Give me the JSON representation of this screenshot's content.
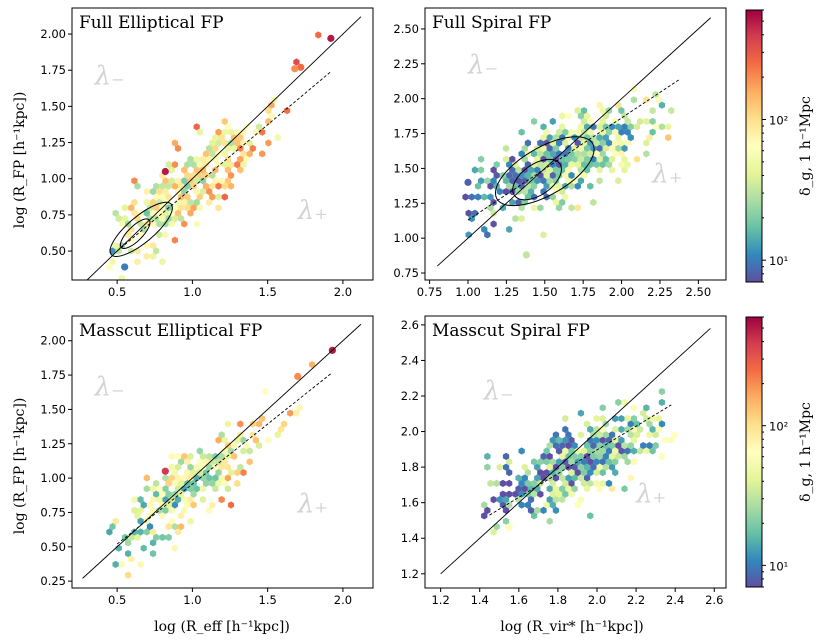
{
  "figure": {
    "xlabel_left": "log (R_eff [h⁻¹kpc])",
    "xlabel_right": "log (R_vir* [h⁻¹kpc])",
    "ylabel": "log (R_FP [h⁻¹kpc])",
    "lambda_minus": "λ₋",
    "lambda_plus": "λ₊"
  },
  "colorbar": {
    "label": "δ_g, 1 h⁻¹Mpc",
    "scale": "log",
    "range": [
      7,
      600
    ],
    "tick_labels": [
      "10¹",
      "10²"
    ],
    "tick_values": [
      10,
      100
    ],
    "colormap": "Spectral_r"
  },
  "chart_data": [
    {
      "type": "scatter",
      "title": "Full Elliptical FP",
      "xlim": [
        0.2,
        2.2
      ],
      "ylim": [
        0.3,
        2.18
      ],
      "xticks": [
        "0.5",
        "1.0",
        "1.5",
        "2.0"
      ],
      "xtick_values": [
        0.5,
        1.0,
        1.5,
        2.0
      ],
      "yticks": [
        "0.50",
        "0.75",
        "1.00",
        "1.25",
        "1.50",
        "1.75",
        "2.00"
      ],
      "ytick_values": [
        0.5,
        0.75,
        1.0,
        1.25,
        1.5,
        1.75,
        2.0
      ],
      "one_to_one": [
        [
          0.27,
          0.27
        ],
        [
          2.12,
          2.12
        ]
      ],
      "fit_line": [
        [
          0.5,
          0.5
        ],
        [
          1.92,
          1.74
        ]
      ],
      "cloud": {
        "center": [
          0.95,
          0.92
        ],
        "slope": 0.92,
        "spread_along": 0.36,
        "spread_perp": 0.1,
        "count": 330,
        "x_range": [
          0.45,
          1.9
        ],
        "density_base": 1.7
      },
      "contours": [
        {
          "center": [
            0.62,
            0.62
          ],
          "rx": 0.13,
          "ry": 0.05,
          "angle_deg": 45
        },
        {
          "center": [
            0.66,
            0.65
          ],
          "rx": 0.26,
          "ry": 0.09,
          "angle_deg": 40
        }
      ],
      "highlights": [
        {
          "x": 1.92,
          "y": 1.97,
          "log_density": 2.7
        },
        {
          "x": 1.72,
          "y": 1.77,
          "log_density": 2.4
        },
        {
          "x": 1.68,
          "y": 1.76,
          "log_density": 2.3
        },
        {
          "x": 0.82,
          "y": 1.05,
          "log_density": 2.7
        },
        {
          "x": 0.55,
          "y": 0.39,
          "log_density": 1.0
        }
      ],
      "lambda_minus_pos": [
        0.35,
        1.65
      ],
      "lambda_plus_pos": [
        1.7,
        0.72
      ]
    },
    {
      "type": "scatter",
      "title": "Full Spiral FP",
      "xlim": [
        0.72,
        2.68
      ],
      "ylim": [
        0.7,
        2.65
      ],
      "xticks": [
        "0.75",
        "1.00",
        "1.25",
        "1.50",
        "1.75",
        "2.00",
        "2.25",
        "2.50"
      ],
      "xtick_values": [
        0.75,
        1.0,
        1.25,
        1.5,
        1.75,
        2.0,
        2.25,
        2.5
      ],
      "yticks": [
        "0.75",
        "1.00",
        "1.25",
        "1.50",
        "1.75",
        "2.00",
        "2.25",
        "2.50"
      ],
      "ytick_values": [
        0.75,
        1.0,
        1.25,
        1.5,
        1.75,
        2.0,
        2.25,
        2.5
      ],
      "one_to_one": [
        [
          0.8,
          0.8
        ],
        [
          2.58,
          2.58
        ]
      ],
      "fit_line": [
        [
          1.0,
          1.13
        ],
        [
          2.38,
          2.14
        ]
      ],
      "cloud": {
        "center": [
          1.62,
          1.55
        ],
        "slope": 0.55,
        "spread_along": 0.32,
        "spread_perp": 0.12,
        "count": 480,
        "x_range": [
          1.0,
          2.38
        ],
        "density_base": 1.2
      },
      "contours": [
        {
          "center": [
            1.45,
            1.42
          ],
          "rx": 0.18,
          "ry": 0.11,
          "angle_deg": 35
        },
        {
          "center": [
            1.5,
            1.48
          ],
          "rx": 0.36,
          "ry": 0.17,
          "angle_deg": 30
        }
      ],
      "highlights": [
        {
          "x": 1.0,
          "y": 1.4,
          "log_density": 0.9
        },
        {
          "x": 1.38,
          "y": 0.88,
          "log_density": 1.5
        }
      ],
      "lambda_minus_pos": [
        1.0,
        2.18
      ],
      "lambda_plus_pos": [
        2.2,
        1.4
      ]
    },
    {
      "type": "scatter",
      "title": "Masscut Elliptical FP",
      "xlim": [
        0.2,
        2.2
      ],
      "ylim": [
        0.2,
        2.18
      ],
      "xticks": [
        "0.5",
        "1.0",
        "1.5",
        "2.0"
      ],
      "xtick_values": [
        0.5,
        1.0,
        1.5,
        2.0
      ],
      "yticks": [
        "0.25",
        "0.50",
        "0.75",
        "1.00",
        "1.25",
        "1.50",
        "1.75",
        "2.00"
      ],
      "ytick_values": [
        0.25,
        0.5,
        0.75,
        1.0,
        1.25,
        1.5,
        1.75,
        2.0
      ],
      "one_to_one": [
        [
          0.27,
          0.27
        ],
        [
          2.12,
          2.12
        ]
      ],
      "fit_line": [
        [
          0.5,
          0.52
        ],
        [
          1.92,
          1.76
        ]
      ],
      "cloud": {
        "center": [
          1.0,
          0.95
        ],
        "slope": 0.92,
        "spread_along": 0.33,
        "spread_perp": 0.09,
        "count": 270,
        "x_range": [
          0.45,
          1.85
        ],
        "density_base": 1.55
      },
      "contours": [],
      "highlights": [
        {
          "x": 1.93,
          "y": 1.93,
          "log_density": 2.7
        },
        {
          "x": 1.7,
          "y": 1.74,
          "log_density": 2.3
        },
        {
          "x": 0.82,
          "y": 1.05,
          "log_density": 2.6
        }
      ],
      "lambda_minus_pos": [
        0.35,
        1.6
      ],
      "lambda_plus_pos": [
        1.7,
        0.75
      ]
    },
    {
      "type": "scatter",
      "title": "Masscut Spiral FP",
      "xlim": [
        1.12,
        2.66
      ],
      "ylim": [
        1.12,
        2.65
      ],
      "xticks": [
        "1.2",
        "1.4",
        "1.6",
        "1.8",
        "2.0",
        "2.2",
        "2.4",
        "2.6"
      ],
      "xtick_values": [
        1.2,
        1.4,
        1.6,
        1.8,
        2.0,
        2.2,
        2.4,
        2.6
      ],
      "yticks": [
        "1.2",
        "1.4",
        "1.6",
        "1.8",
        "2.0",
        "2.2",
        "2.4",
        "2.6"
      ],
      "ytick_values": [
        1.2,
        1.4,
        1.6,
        1.8,
        2.0,
        2.2,
        2.4,
        2.6
      ],
      "one_to_one": [
        [
          1.2,
          1.2
        ],
        [
          2.58,
          2.58
        ]
      ],
      "fit_line": [
        [
          1.45,
          1.53
        ],
        [
          2.38,
          2.15
        ]
      ],
      "cloud": {
        "center": [
          1.9,
          1.82
        ],
        "slope": 0.55,
        "spread_along": 0.24,
        "spread_perp": 0.09,
        "count": 420,
        "x_range": [
          1.4,
          2.4
        ],
        "density_base": 1.15
      },
      "contours": [],
      "highlights": [
        {
          "x": 1.55,
          "y": 1.46,
          "log_density": 1.8
        }
      ],
      "lambda_minus_pos": [
        1.42,
        2.18
      ],
      "lambda_plus_pos": [
        2.2,
        1.6
      ]
    }
  ]
}
